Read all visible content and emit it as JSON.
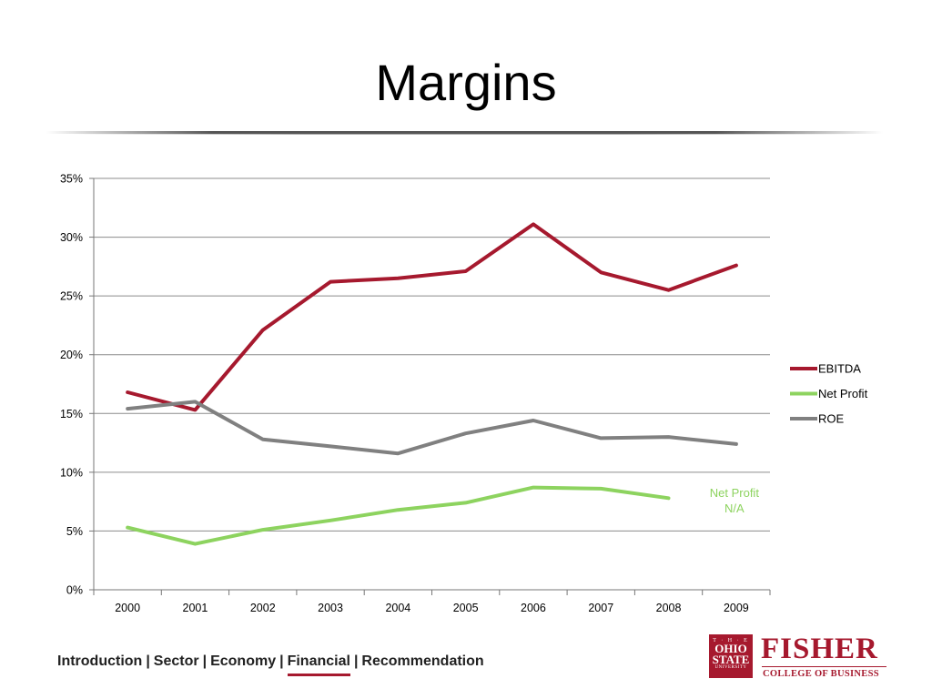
{
  "slide": {
    "title": "Margins"
  },
  "chart_data": {
    "type": "line",
    "categories": [
      "2000",
      "2001",
      "2002",
      "2003",
      "2004",
      "2005",
      "2006",
      "2007",
      "2008",
      "2009"
    ],
    "ylim": [
      0,
      35
    ],
    "yticks": [
      0,
      5,
      10,
      15,
      20,
      25,
      30,
      35
    ],
    "ytick_labels": [
      "0%",
      "5%",
      "10%",
      "15%",
      "20%",
      "25%",
      "30%",
      "35%"
    ],
    "grid": true,
    "legend_position": "right",
    "series": [
      {
        "name": "EBITDA",
        "color": "#a6192e",
        "values": [
          16.8,
          15.3,
          22.1,
          26.2,
          26.5,
          27.1,
          31.1,
          27.0,
          25.5,
          27.6
        ]
      },
      {
        "name": "Net Profit",
        "color": "#8dd35f",
        "values": [
          5.3,
          3.9,
          5.1,
          5.9,
          6.8,
          7.4,
          8.7,
          8.6,
          7.8,
          null
        ]
      },
      {
        "name": "ROE",
        "color": "#808080",
        "values": [
          15.4,
          16.0,
          12.8,
          12.2,
          11.6,
          13.3,
          14.4,
          12.9,
          13.0,
          12.4
        ]
      }
    ],
    "annotation": {
      "line1": "Net Profit",
      "line2": "N/A",
      "color": "#8dd35f"
    }
  },
  "nav": {
    "items": [
      "Introduction",
      "Sector",
      "Economy",
      "Financial",
      "Recommendation"
    ],
    "separator": "|",
    "active_index": 3
  },
  "logo": {
    "seal_top": "T · H · E",
    "seal_line1": "OHIO",
    "seal_line2": "STATE",
    "seal_bottom": "UNIVERSITY",
    "brand": "FISHER",
    "subbrand": "COLLEGE OF BUSINESS",
    "color": "#a6192e"
  }
}
